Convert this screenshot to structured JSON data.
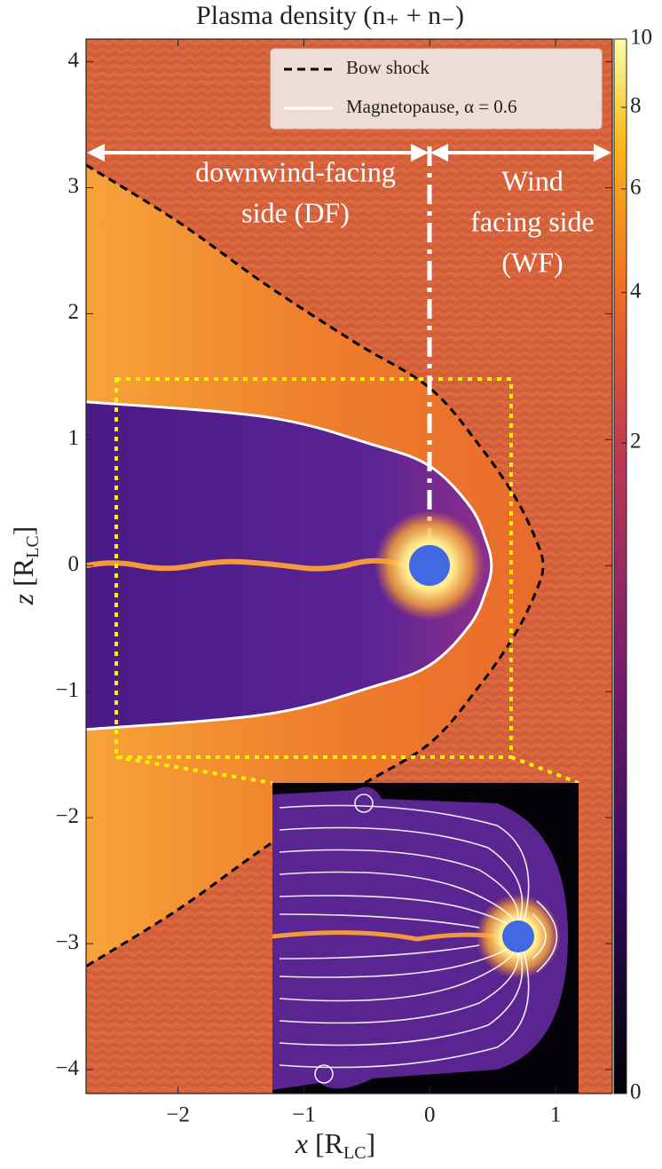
{
  "chart_data": {
    "type": "line",
    "title": "Plasma density (n₊ + n₋)",
    "xlabel": [
      "x",
      "[R",
      "LC",
      "]"
    ],
    "ylabel": [
      "z",
      "[R",
      "LC",
      "]"
    ],
    "xlim": [
      -2.73,
      1.45
    ],
    "ylim": [
      -4.19,
      4.18
    ],
    "xticks": [
      -2,
      -1,
      0,
      1
    ],
    "yticks": [
      -4,
      -3,
      -2,
      -1,
      0,
      1,
      2,
      3,
      4
    ],
    "legend": "upper right",
    "series": [
      {
        "name": "Bow shock",
        "color": "#000000",
        "style": "dashed",
        "x": [
          -2.73,
          -2.0,
          -1.3,
          -0.59,
          0,
          0.39,
          0.68,
          0.85,
          0.9,
          0.85,
          0.68,
          0.39,
          0,
          -0.59,
          -1.3,
          -2.0,
          -2.73
        ],
        "y": [
          3.18,
          2.73,
          2.23,
          1.77,
          1.41,
          0.96,
          0.54,
          0.19,
          0,
          -0.19,
          -0.54,
          -0.96,
          -1.41,
          -1.77,
          -2.23,
          -2.73,
          -3.18
        ]
      },
      {
        "name": "Magnetopause, α = 0.6",
        "color": "#ffffff",
        "style": "solid",
        "x": [
          -2.73,
          -1.3,
          -0.45,
          0,
          0.32,
          0.45,
          0.49,
          0.45,
          0.32,
          0,
          -0.45,
          -1.3,
          -2.73
        ],
        "y": [
          1.3,
          1.18,
          0.96,
          0.79,
          0.47,
          0.19,
          0,
          -0.19,
          -0.47,
          -0.79,
          -0.96,
          -1.18,
          -1.3
        ]
      }
    ],
    "annotations": [
      [
        "downwind-facing",
        "side (DF)"
      ],
      [
        "Wind",
        "facing side",
        "(WF)"
      ]
    ],
    "colorbar": {
      "norm": "power",
      "gamma": 0.3,
      "lim": [
        0,
        10
      ],
      "ticks": [
        0,
        2,
        4,
        6,
        8,
        10
      ]
    }
  }
}
